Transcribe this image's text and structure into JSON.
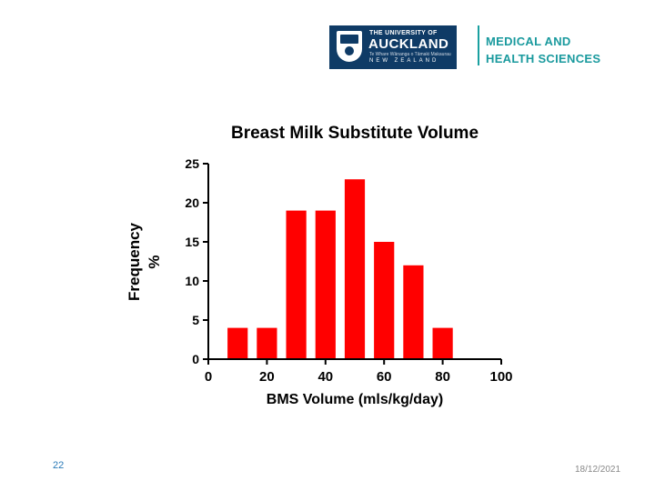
{
  "header": {
    "logo_top": "THE UNIVERSITY OF",
    "logo_name": "AUCKLAND",
    "logo_maori": "Te Whare Wānanga o Tāmaki Makaurau",
    "logo_country": "NEW ZEALAND",
    "faculty_line1": "MEDICAL AND",
    "faculty_line2": "HEALTH SCIENCES"
  },
  "footer": {
    "slide_number": "22",
    "date": "18/12/2021"
  },
  "colors": {
    "bar": "#ff0000",
    "axis": "#000000",
    "brand_navy": "#0f3b66",
    "brand_teal": "#1a9a9e"
  },
  "chart_data": {
    "type": "bar",
    "title": "Breast Milk Substitute Volume",
    "xlabel": "BMS Volume (mls/kg/day)",
    "ylabel_line1": "Frequency",
    "ylabel_line2": "%",
    "x_centers": [
      10,
      20,
      30,
      40,
      50,
      60,
      70,
      80
    ],
    "values": [
      4,
      4,
      19,
      19,
      23,
      15,
      12,
      4
    ],
    "bin_width": 10,
    "xlim": [
      0,
      100
    ],
    "ylim": [
      0,
      25
    ],
    "x_ticks": [
      0,
      20,
      40,
      60,
      80,
      100
    ],
    "y_ticks": [
      0,
      5,
      10,
      15,
      20,
      25
    ],
    "grid": false,
    "legend": "none"
  }
}
